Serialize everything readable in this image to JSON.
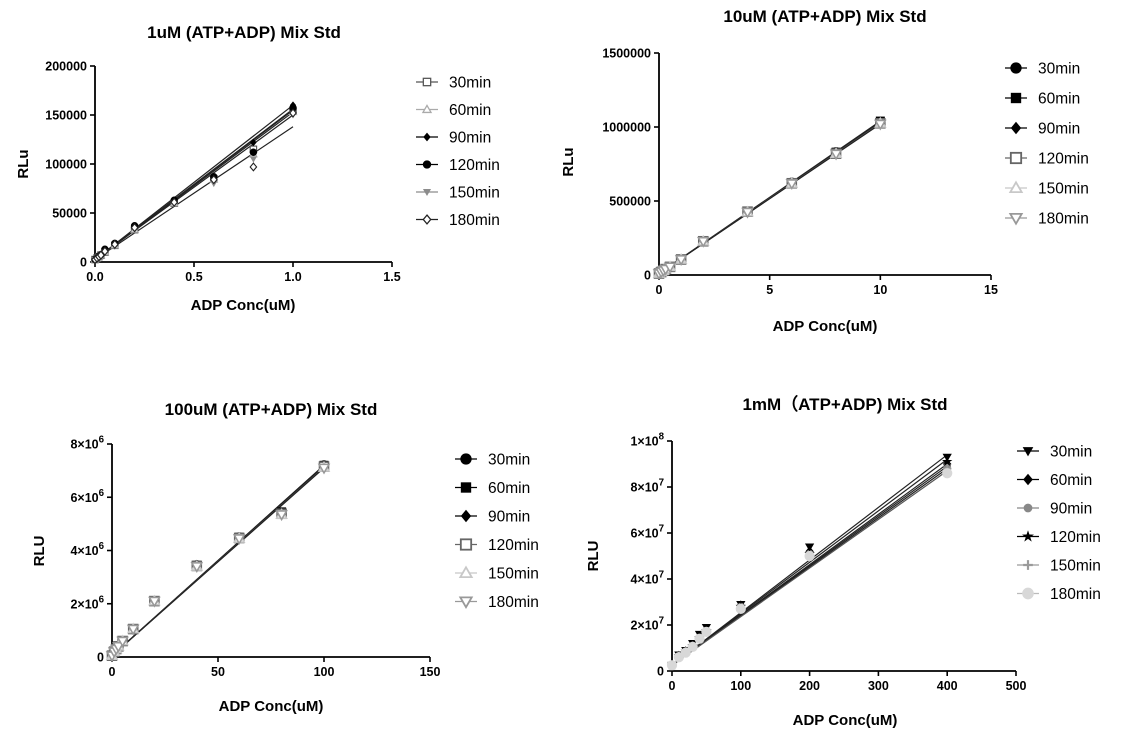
{
  "chart_data": [
    {
      "type": "scatter",
      "title": "1uM (ATP+ADP) Mix Std",
      "xlabel": "ADP Conc(uM)",
      "ylabel": "RLu",
      "xlim": [
        0,
        1.5
      ],
      "ylim": [
        0,
        200000
      ],
      "xticks": [
        "0.0",
        "0.5",
        "1.0",
        "1.5"
      ],
      "yticks": [
        "0",
        "50000",
        "100000",
        "150000",
        "200000"
      ],
      "legend_position": "right",
      "x": [
        0,
        0.01,
        0.02,
        0.03,
        0.05,
        0.1,
        0.2,
        0.4,
        0.6,
        0.8,
        1.0
      ],
      "series": [
        {
          "name": "30min",
          "color": "#555555",
          "marker": "square-open",
          "values": [
            2500,
            4000,
            5500,
            7000,
            10000,
            17000,
            33000,
            60000,
            85000,
            115000,
            155000
          ],
          "fit_end": 155000
        },
        {
          "name": "60min",
          "color": "#aaaaaa",
          "marker": "triangle-up-open",
          "values": [
            2500,
            4000,
            5500,
            7000,
            10000,
            17000,
            33000,
            60000,
            84000,
            110000,
            153000
          ],
          "fit_end": 153000
        },
        {
          "name": "90min",
          "color": "#000000",
          "marker": "diamond",
          "values": [
            2500,
            4000,
            5500,
            7500,
            11000,
            18000,
            35000,
            63000,
            87000,
            122000,
            160000
          ],
          "fit_end": 160000
        },
        {
          "name": "120min",
          "color": "#000000",
          "marker": "circle",
          "values": [
            2500,
            4000,
            6000,
            7500,
            13000,
            19000,
            37000,
            63000,
            87000,
            112000,
            157000
          ],
          "fit_end": 156000
        },
        {
          "name": "150min",
          "color": "#8c8c8c",
          "marker": "triangle-down",
          "values": [
            2500,
            4000,
            5500,
            7000,
            10000,
            16000,
            33000,
            60000,
            80000,
            105000,
            150000
          ],
          "fit_end": 150000
        },
        {
          "name": "180min",
          "color": "#222222",
          "marker": "diamond-open",
          "values": [
            2500,
            4000,
            5500,
            7000,
            11000,
            18000,
            35000,
            61000,
            84000,
            97000,
            152000
          ],
          "fit_end": 138000
        }
      ]
    },
    {
      "type": "scatter",
      "title": "10uM (ATP+ADP) Mix Std",
      "xlabel": "ADP Conc(uM)",
      "ylabel": "RLu",
      "xlim": [
        0,
        15
      ],
      "ylim": [
        0,
        1500000
      ],
      "xticks": [
        "0",
        "5",
        "10",
        "15"
      ],
      "yticks": [
        "0",
        "500000",
        "1000000",
        "1500000"
      ],
      "legend_position": "right",
      "x": [
        0,
        0.1,
        0.2,
        0.3,
        0.5,
        1,
        2,
        4,
        6,
        8,
        10
      ],
      "series": [
        {
          "name": "30min",
          "color": "#000000",
          "marker": "circle",
          "values": [
            10000,
            20000,
            30000,
            40000,
            55000,
            105000,
            230000,
            430000,
            625000,
            830000,
            1035000
          ],
          "fit_end": 1035000
        },
        {
          "name": "60min",
          "color": "#000000",
          "marker": "square",
          "values": [
            10000,
            20000,
            30000,
            40000,
            55000,
            105000,
            230000,
            430000,
            625000,
            830000,
            1040000
          ],
          "fit_end": 1040000
        },
        {
          "name": "90min",
          "color": "#000000",
          "marker": "diamond",
          "values": [
            10000,
            20000,
            30000,
            40000,
            55000,
            105000,
            228000,
            428000,
            620000,
            825000,
            1030000
          ],
          "fit_end": 1030000
        },
        {
          "name": "120min",
          "color": "#666666",
          "marker": "square-open",
          "values": [
            10000,
            20000,
            30000,
            40000,
            55000,
            105000,
            228000,
            428000,
            620000,
            820000,
            1025000
          ],
          "fit_end": 1025000
        },
        {
          "name": "150min",
          "color": "#c8c8c8",
          "marker": "triangle-up-open",
          "values": [
            10000,
            20000,
            30000,
            40000,
            55000,
            105000,
            228000,
            425000,
            618000,
            820000,
            1025000
          ],
          "fit_end": 1025000
        },
        {
          "name": "180min",
          "color": "#999999",
          "marker": "triangle-down-open",
          "values": [
            10000,
            20000,
            30000,
            40000,
            55000,
            105000,
            228000,
            425000,
            618000,
            818000,
            1020000
          ],
          "fit_end": 1020000
        }
      ]
    },
    {
      "type": "scatter",
      "title": "100uM (ATP+ADP) Mix Std",
      "xlabel": "ADP Conc(uM)",
      "ylabel": "RLU",
      "xlim": [
        0,
        150
      ],
      "ylim": [
        0,
        8000000
      ],
      "xticks": [
        "0",
        "50",
        "100",
        "150"
      ],
      "yticks": [
        "0",
        "2×10",
        "4×10",
        "6×10",
        "8×10"
      ],
      "ytick_exponent": "6",
      "legend_position": "right",
      "x": [
        0,
        1,
        2,
        3,
        5,
        10,
        20,
        40,
        60,
        80,
        100
      ],
      "series": [
        {
          "name": "30min",
          "color": "#000000",
          "marker": "circle",
          "values": [
            50000,
            200000,
            300000,
            400000,
            600000,
            1050000,
            2100000,
            3450000,
            4500000,
            5400000,
            7200000
          ],
          "fit_end": 7200000
        },
        {
          "name": "60min",
          "color": "#000000",
          "marker": "square",
          "values": [
            50000,
            200000,
            300000,
            400000,
            600000,
            1050000,
            2100000,
            3450000,
            4500000,
            5450000,
            7200000
          ],
          "fit_end": 7200000
        },
        {
          "name": "90min",
          "color": "#000000",
          "marker": "diamond",
          "values": [
            50000,
            200000,
            300000,
            400000,
            600000,
            1050000,
            2100000,
            3450000,
            4480000,
            5400000,
            7180000
          ],
          "fit_end": 7180000
        },
        {
          "name": "120min",
          "color": "#666666",
          "marker": "square-open",
          "values": [
            50000,
            200000,
            300000,
            400000,
            600000,
            1050000,
            2100000,
            3420000,
            4470000,
            5380000,
            7150000
          ],
          "fit_end": 7150000
        },
        {
          "name": "150min",
          "color": "#c8c8c8",
          "marker": "triangle-up-open",
          "values": [
            50000,
            200000,
            300000,
            400000,
            600000,
            1050000,
            2100000,
            3400000,
            4450000,
            5350000,
            7120000
          ],
          "fit_end": 7120000
        },
        {
          "name": "180min",
          "color": "#999999",
          "marker": "triangle-down-open",
          "values": [
            50000,
            200000,
            300000,
            400000,
            600000,
            1050000,
            2100000,
            3400000,
            4450000,
            5350000,
            7100000
          ],
          "fit_end": 7100000
        }
      ]
    },
    {
      "type": "scatter",
      "title": "1mM（ATP+ADP) Mix Std",
      "xlabel": "ADP Conc(uM)",
      "ylabel": "RLU",
      "xlim": [
        0,
        500
      ],
      "ylim": [
        0,
        100000000
      ],
      "xticks": [
        "0",
        "100",
        "200",
        "300",
        "400",
        "500"
      ],
      "yticks": [
        "0",
        "2×10",
        "4×10",
        "6×10",
        "8×10",
        "1×10"
      ],
      "ytick_exponent": "7",
      "ytick_last_exponent": "8",
      "legend_position": "right",
      "x": [
        0,
        10,
        20,
        30,
        40,
        50,
        100,
        200,
        400
      ],
      "series": [
        {
          "name": "30min",
          "color": "#000000",
          "marker": "triangle-down",
          "values": [
            2500000,
            7000000,
            9000000,
            12000000,
            16000000,
            19000000,
            29000000,
            54000000,
            93000000
          ],
          "fit_end": 94000000
        },
        {
          "name": "60min",
          "color": "#000000",
          "marker": "diamond",
          "values": [
            2500000,
            6500000,
            8500000,
            11000000,
            15000000,
            18000000,
            28500000,
            52000000,
            90000000
          ],
          "fit_end": 92000000
        },
        {
          "name": "90min",
          "color": "#888888",
          "marker": "circle-small",
          "values": [
            2500000,
            6500000,
            8500000,
            11000000,
            14500000,
            17500000,
            28000000,
            51000000,
            89000000
          ],
          "fit_end": 90000000
        },
        {
          "name": "120min",
          "color": "#000000",
          "marker": "star",
          "values": [
            2500000,
            6500000,
            8500000,
            11000000,
            14500000,
            17500000,
            28000000,
            51000000,
            91000000
          ],
          "fit_end": 89000000
        },
        {
          "name": "150min",
          "color": "#9a9a9a",
          "marker": "plus",
          "values": [
            2500000,
            6500000,
            8500000,
            11000000,
            14000000,
            17000000,
            27500000,
            50000000,
            88000000
          ],
          "fit_end": 88000000
        },
        {
          "name": "180min",
          "color": "#d8d8d8",
          "marker": "circle-light",
          "values": [
            2500000,
            6000000,
            8000000,
            10500000,
            14000000,
            17000000,
            27000000,
            50000000,
            86000000
          ],
          "fit_end": 87000000
        }
      ]
    }
  ]
}
